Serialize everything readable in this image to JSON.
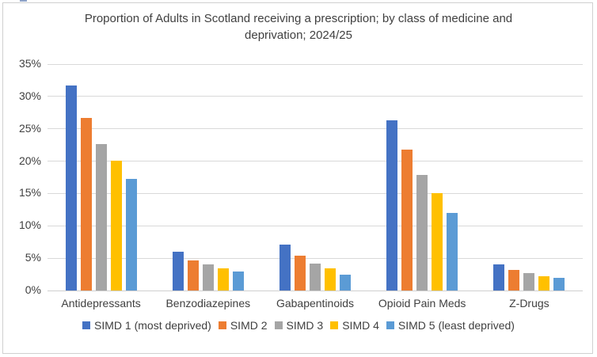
{
  "artifact": {
    "color": "#8ea3c8"
  },
  "chart_data": {
    "type": "bar",
    "title": "Proportion of Adults in Scotland receiving a prescription; by class of medicine and deprivation; 2024/25",
    "categories": [
      "Antidepressants",
      "Benzodiazepines",
      "Gabapentinoids",
      "Opioid Pain Meds",
      "Z-Drugs"
    ],
    "series": [
      {
        "name": "SIMD 1 (most deprived)",
        "color": "#4472C4",
        "values": [
          31.7,
          6.0,
          7.1,
          26.3,
          4.0
        ]
      },
      {
        "name": "SIMD 2",
        "color": "#ED7D31",
        "values": [
          26.7,
          4.7,
          5.4,
          21.8,
          3.2
        ]
      },
      {
        "name": "SIMD 3",
        "color": "#A5A5A5",
        "values": [
          22.6,
          4.0,
          4.2,
          17.9,
          2.7
        ]
      },
      {
        "name": "SIMD 4",
        "color": "#FFC000",
        "values": [
          20.1,
          3.4,
          3.4,
          15.1,
          2.2
        ]
      },
      {
        "name": "SIMD 5 (least deprived)",
        "color": "#5B9BD5",
        "values": [
          17.2,
          2.9,
          2.5,
          12.0,
          2.0
        ]
      }
    ],
    "ylim": [
      0,
      35
    ],
    "ytick_step": 5,
    "ytick_labels": [
      "0%",
      "5%",
      "10%",
      "15%",
      "20%",
      "25%",
      "30%",
      "35%"
    ],
    "grid": true,
    "legend_position": "bottom",
    "axis_text_color": "#404040",
    "gridline_color": "#d9d9d9"
  }
}
